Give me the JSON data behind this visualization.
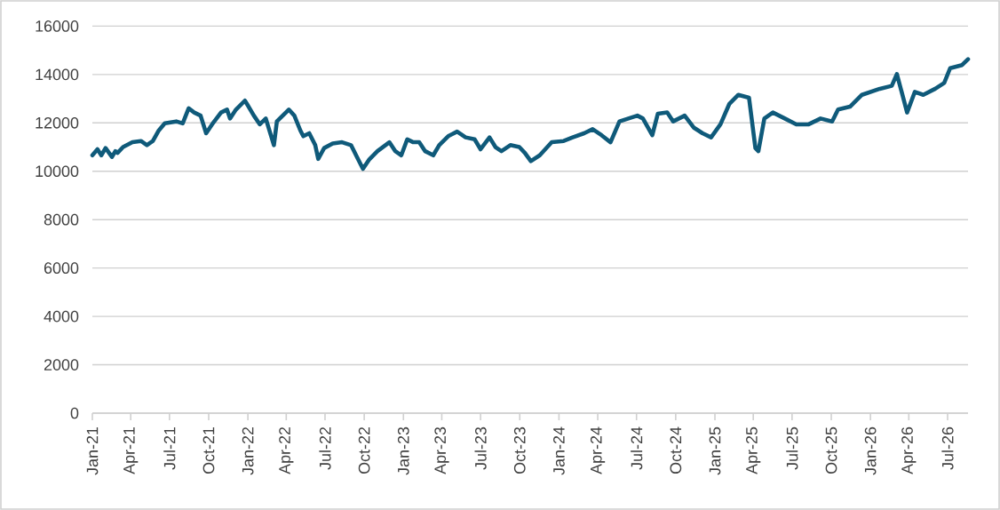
{
  "chart_data": {
    "type": "line",
    "grid": "y",
    "marker": "none",
    "line_style": "solid",
    "xlim": [
      "2021-01-01",
      "2026-08-18"
    ],
    "ylim": [
      0,
      16000
    ],
    "xticks": [
      {
        "value": "2021-01-01",
        "label": "Jan-21"
      },
      {
        "value": "2021-04-01",
        "label": "Apr-21"
      },
      {
        "value": "2021-07-01",
        "label": "Jul-21"
      },
      {
        "value": "2021-10-01",
        "label": "Oct-21"
      },
      {
        "value": "2022-01-01",
        "label": "Jan-22"
      },
      {
        "value": "2022-04-01",
        "label": "Apr-22"
      },
      {
        "value": "2022-07-01",
        "label": "Jul-22"
      },
      {
        "value": "2022-10-01",
        "label": "Oct-22"
      },
      {
        "value": "2023-01-01",
        "label": "Jan-23"
      },
      {
        "value": "2023-04-01",
        "label": "Apr-23"
      },
      {
        "value": "2023-07-01",
        "label": "Jul-23"
      },
      {
        "value": "2023-10-01",
        "label": "Oct-23"
      },
      {
        "value": "2024-01-01",
        "label": "Jan-24"
      },
      {
        "value": "2024-04-01",
        "label": "Apr-24"
      },
      {
        "value": "2024-07-01",
        "label": "Jul-24"
      },
      {
        "value": "2024-10-01",
        "label": "Oct-24"
      },
      {
        "value": "2025-01-01",
        "label": "Jan-25"
      },
      {
        "value": "2025-04-01",
        "label": "Apr-25"
      },
      {
        "value": "2025-07-01",
        "label": "Jul-25"
      },
      {
        "value": "2025-10-01",
        "label": "Oct-25"
      },
      {
        "value": "2026-01-01",
        "label": "Jan-26"
      },
      {
        "value": "2026-04-01",
        "label": "Apr-26"
      },
      {
        "value": "2026-07-01",
        "label": "Jul-26"
      }
    ],
    "yticks": [
      0,
      2000,
      4000,
      6000,
      8000,
      10000,
      12000,
      14000,
      16000
    ],
    "series": [
      {
        "color": "#0f5a7a",
        "x": [
          "2021-01-01",
          "2021-01-13",
          "2021-01-22",
          "2021-02-01",
          "2021-02-16",
          "2021-02-24",
          "2021-03-01",
          "2021-03-14",
          "2021-04-05",
          "2021-04-25",
          "2021-05-09",
          "2021-05-23",
          "2021-06-06",
          "2021-06-20",
          "2021-07-17",
          "2021-08-01",
          "2021-08-15",
          "2021-08-28",
          "2021-09-12",
          "2021-09-25",
          "2021-10-09",
          "2021-10-30",
          "2021-11-13",
          "2021-11-20",
          "2021-12-04",
          "2021-12-25",
          "2022-01-01",
          "2022-01-15",
          "2022-01-29",
          "2022-02-12",
          "2022-03-03",
          "2022-03-10",
          "2022-04-07",
          "2022-04-20",
          "2022-05-04",
          "2022-05-11",
          "2022-05-25",
          "2022-06-08",
          "2022-06-15",
          "2022-06-29",
          "2022-07-19",
          "2022-08-10",
          "2022-08-31",
          "2022-09-14",
          "2022-09-28",
          "2022-10-12",
          "2022-11-01",
          "2022-11-29",
          "2022-12-13",
          "2022-12-27",
          "2023-01-10",
          "2023-01-24",
          "2023-02-07",
          "2023-02-21",
          "2023-03-12",
          "2023-03-26",
          "2023-04-16",
          "2023-05-07",
          "2023-05-27",
          "2023-06-17",
          "2023-07-01",
          "2023-07-22",
          "2023-08-05",
          "2023-08-19",
          "2023-09-09",
          "2023-09-30",
          "2023-10-13",
          "2023-10-27",
          "2023-11-17",
          "2023-12-15",
          "2024-01-12",
          "2024-02-02",
          "2024-02-29",
          "2024-03-20",
          "2024-04-10",
          "2024-05-01",
          "2024-05-22",
          "2024-06-12",
          "2024-07-03",
          "2024-07-16",
          "2024-08-07",
          "2024-08-20",
          "2024-09-11",
          "2024-09-25",
          "2024-10-22",
          "2024-11-12",
          "2024-12-03",
          "2024-12-23",
          "2025-01-14",
          "2025-02-04",
          "2025-02-25",
          "2025-03-22",
          "2025-04-06",
          "2025-04-13",
          "2025-04-27",
          "2025-05-17",
          "2025-06-14",
          "2025-07-11",
          "2025-08-09",
          "2025-09-06",
          "2025-10-03",
          "2025-10-17",
          "2025-11-14",
          "2025-12-12",
          "2026-01-23",
          "2026-02-20",
          "2026-03-04",
          "2026-03-17",
          "2026-03-28",
          "2026-04-15",
          "2026-05-05",
          "2026-06-02",
          "2026-06-23",
          "2026-07-07",
          "2026-08-04",
          "2026-08-18"
        ],
        "values": [
          10660,
          10910,
          10660,
          10960,
          10590,
          10830,
          10760,
          11000,
          11200,
          11250,
          11080,
          11250,
          11690,
          11980,
          12060,
          11980,
          12600,
          12430,
          12300,
          11570,
          11940,
          12430,
          12550,
          12180,
          12550,
          12920,
          12720,
          12300,
          11940,
          12180,
          11080,
          12060,
          12550,
          12300,
          11690,
          11450,
          11570,
          11080,
          10510,
          10960,
          11150,
          11200,
          11080,
          10590,
          10100,
          10470,
          10830,
          11200,
          10830,
          10660,
          11320,
          11200,
          11200,
          10830,
          10660,
          11080,
          11450,
          11640,
          11400,
          11320,
          10910,
          11400,
          11000,
          10830,
          11080,
          11000,
          10760,
          10420,
          10660,
          11200,
          11250,
          11400,
          11570,
          11740,
          11490,
          11200,
          12060,
          12180,
          12300,
          12180,
          11490,
          12380,
          12430,
          12060,
          12300,
          11810,
          11570,
          11400,
          11940,
          12790,
          13160,
          13040,
          10960,
          10830,
          12180,
          12430,
          12180,
          11940,
          11940,
          12180,
          12060,
          12550,
          12670,
          13160,
          13410,
          13530,
          14020,
          13160,
          12430,
          13280,
          13160,
          13410,
          13650,
          14260,
          14390,
          14630
        ]
      }
    ]
  }
}
